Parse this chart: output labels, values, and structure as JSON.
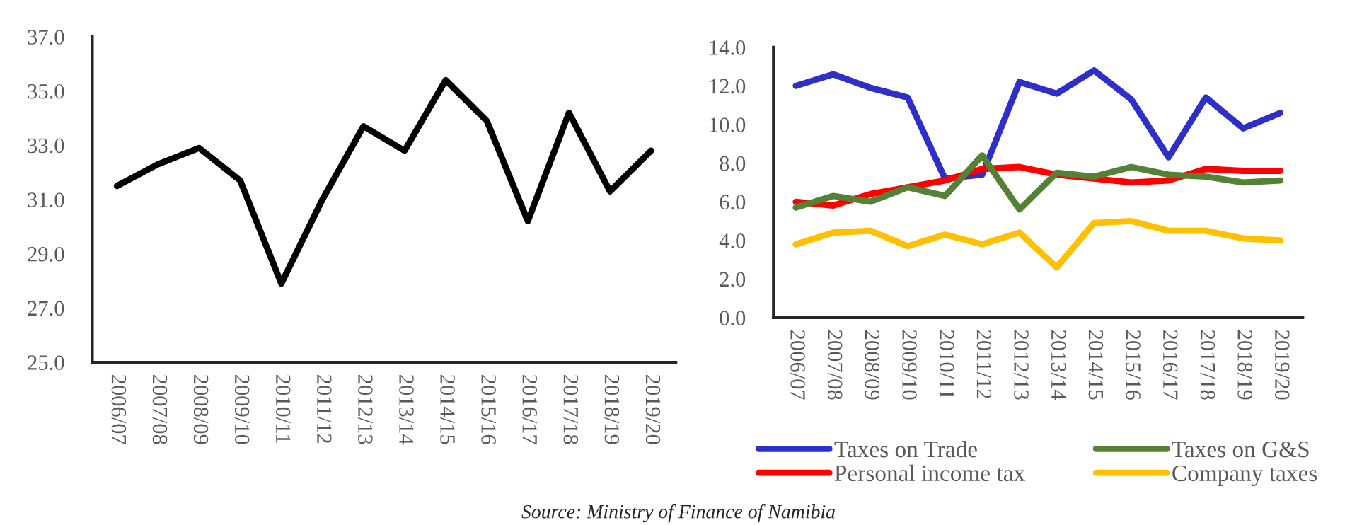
{
  "chart_data": [
    {
      "type": "line",
      "categories": [
        "2006/07",
        "2007/08",
        "2008/09",
        "2009/10",
        "2010/11",
        "2011/12",
        "2012/13",
        "2013/14",
        "2014/15",
        "2015/16",
        "2016/17",
        "2017/18",
        "2018/19",
        "2019/20"
      ],
      "series": [
        {
          "color": "#000000",
          "values": [
            31.5,
            32.3,
            32.9,
            31.7,
            27.9,
            31.0,
            33.7,
            32.8,
            35.4,
            33.9,
            30.2,
            34.2,
            31.3,
            32.8
          ]
        }
      ],
      "ylim": [
        25,
        37
      ],
      "yticks": [
        {
          "value": 25,
          "label": "25.0"
        },
        {
          "value": 27,
          "label": "27.0"
        },
        {
          "value": 29,
          "label": "29.0"
        },
        {
          "value": 31,
          "label": "31.0"
        },
        {
          "value": 33,
          "label": "33.0"
        },
        {
          "value": 35,
          "label": "35.0"
        },
        {
          "value": 37,
          "label": "37.0"
        }
      ],
      "grid": false,
      "legend": false,
      "annotations": [
        "Source: Ministry of Finance of Namibia"
      ]
    },
    {
      "type": "line",
      "categories": [
        "2006/07",
        "2007/08",
        "2008/09",
        "2009/10",
        "2010/11",
        "2011/12",
        "2012/13",
        "2013/14",
        "2014/15",
        "2015/16",
        "2016/17",
        "2017/18",
        "2018/19",
        "2019/20"
      ],
      "series": [
        {
          "name": "Taxes on Trade",
          "color": "#2e2ec8",
          "values": [
            12.0,
            12.6,
            11.9,
            11.4,
            7.2,
            7.4,
            12.2,
            11.6,
            12.8,
            11.3,
            8.3,
            11.4,
            9.8,
            10.6
          ]
        },
        {
          "name": "Personal income tax",
          "color": "#ff0000",
          "values": [
            6.0,
            5.8,
            6.4,
            6.75,
            7.1,
            7.7,
            7.8,
            7.4,
            7.2,
            7.0,
            7.1,
            7.7,
            7.6,
            7.6
          ]
        },
        {
          "name": "Taxes on G&S",
          "color": "#538135",
          "values": [
            5.7,
            6.3,
            6.0,
            6.75,
            6.3,
            8.4,
            5.6,
            7.5,
            7.3,
            7.8,
            7.4,
            7.3,
            7.0,
            7.1
          ]
        },
        {
          "name": "Company taxes",
          "color": "#ffc000",
          "values": [
            3.8,
            4.4,
            4.5,
            3.7,
            4.3,
            3.8,
            4.4,
            2.6,
            4.9,
            5.0,
            4.5,
            4.5,
            4.1,
            4.0
          ]
        }
      ],
      "ylim": [
        0,
        14
      ],
      "yticks": [
        {
          "value": 0,
          "label": "0.0"
        },
        {
          "value": 2,
          "label": "2.0"
        },
        {
          "value": 4,
          "label": "4.0"
        },
        {
          "value": 6,
          "label": "6.0"
        },
        {
          "value": 8,
          "label": "8.0"
        },
        {
          "value": 10,
          "label": "10.0"
        },
        {
          "value": 12,
          "label": "12.0"
        },
        {
          "value": 14,
          "label": "14.0"
        }
      ],
      "grid": false,
      "legend": "bottom"
    }
  ]
}
